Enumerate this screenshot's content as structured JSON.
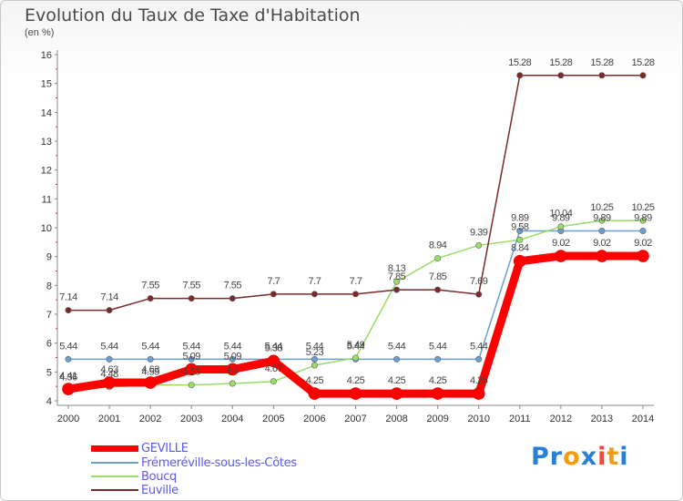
{
  "header": {
    "title": "Evolution du Taux de Taxe d'Habitation",
    "unit": "(en %)"
  },
  "logo": {
    "letters": [
      "P",
      "r",
      "o",
      "x",
      "i",
      "t",
      "i"
    ],
    "colors": [
      "#2a7fd4",
      "#2a7fd4",
      "#f39c12",
      "#2a7fd4",
      "#e74c3c",
      "#f39c12",
      "#2a7fd4"
    ]
  },
  "chart_data": {
    "type": "line",
    "x": [
      "2000",
      "2001",
      "2002",
      "2003",
      "2004",
      "2005",
      "2006",
      "2007",
      "2008",
      "2009",
      "2010",
      "2011",
      "2012",
      "2013",
      "2014"
    ],
    "ylim": [
      4,
      16
    ],
    "yticks": [
      "4",
      "5",
      "6",
      "7",
      "8",
      "9",
      "10",
      "11",
      "12",
      "13",
      "14",
      "15",
      "16"
    ],
    "grid": false,
    "legend": "bottom-left",
    "series": [
      {
        "name": "GEVILLE",
        "color": "#ff0000",
        "values": [
          4.41,
          4.63,
          4.63,
          5.09,
          5.09,
          5.38,
          4.25,
          4.25,
          4.25,
          4.25,
          4.25,
          8.84,
          9.02,
          9.02,
          9.02
        ],
        "labels": [
          "4.41",
          "4.63",
          "4.63",
          "5.09",
          "5.09",
          "5.38",
          "4.25",
          "4.25",
          "4.25",
          "4.25",
          "4.25",
          "8.84",
          "9.02",
          "9.02",
          "9.02"
        ]
      },
      {
        "name": "Frémeréville-sous-les-Côtes",
        "color": "#6a9fd0",
        "values": [
          5.44,
          5.44,
          5.44,
          5.44,
          5.44,
          5.44,
          5.44,
          5.44,
          5.44,
          5.44,
          5.44,
          9.89,
          9.89,
          9.89,
          9.89
        ],
        "labels": [
          "5.44",
          "5.44",
          "5.44",
          "5.44",
          "5.44",
          "5.44",
          "5.44",
          "5.44",
          "5.44",
          "5.44",
          "5.44",
          "9.89",
          "9.89",
          "9.89",
          "9.89"
        ]
      },
      {
        "name": "Boucq",
        "color": "#99dd66",
        "values": [
          4.36,
          4.48,
          4.55,
          4.55,
          4.6,
          4.67,
          5.23,
          5.49,
          8.13,
          8.94,
          9.39,
          9.58,
          10.04,
          10.25,
          10.25
        ],
        "labels": [
          "4.36",
          "4.48",
          "4.55",
          "4.55",
          "4.6",
          "4.67",
          "5.23",
          "5.49",
          "8.13",
          "8.94",
          "9.39",
          "9.58",
          "10.04",
          "10.25",
          "10.25"
        ]
      },
      {
        "name": "Euville",
        "color": "#7a2a2a",
        "values": [
          7.14,
          7.14,
          7.55,
          7.55,
          7.55,
          7.7,
          7.7,
          7.7,
          7.85,
          7.85,
          7.69,
          15.28,
          15.28,
          15.28,
          15.28
        ],
        "labels": [
          "7.14",
          "7.14",
          "7.55",
          "7.55",
          "7.55",
          "7.7",
          "7.7",
          "7.7",
          "7.85",
          "7.85",
          "7.69",
          "15.28",
          "15.28",
          "15.28",
          "15.28"
        ]
      }
    ]
  }
}
